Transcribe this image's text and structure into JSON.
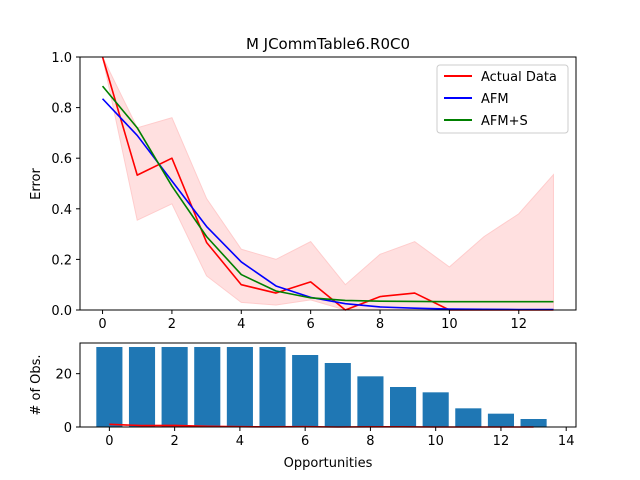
{
  "chart_data": [
    {
      "type": "line",
      "title": "M  JCommTable6.R0C0",
      "xlabel": "",
      "ylabel": "Error",
      "xlim": [
        -0.65,
        13.65
      ],
      "ylim": [
        0,
        1.0
      ],
      "x_ticks": [
        0,
        2,
        4,
        6,
        8,
        10,
        12
      ],
      "y_ticks": [
        0.0,
        0.2,
        0.4,
        0.6,
        0.8,
        1.0
      ],
      "y_tick_labels": [
        "0.0",
        "0.2",
        "0.4",
        "0.6",
        "0.8",
        "1.0"
      ],
      "grid": false,
      "legend_position": "top-right",
      "x": [
        0,
        1,
        2,
        3,
        4,
        5,
        6,
        7,
        8,
        9,
        10,
        11,
        12,
        13
      ],
      "series": [
        {
          "name": "Actual Data",
          "color": "#ff0000",
          "values": [
            1.0,
            0.533,
            0.6,
            0.267,
            0.1,
            0.067,
            0.111,
            0.0,
            0.053,
            0.067,
            0.0,
            0.0,
            0.0,
            0.0
          ]
        },
        {
          "name": "AFM",
          "color": "#0000ff",
          "values": [
            0.835,
            0.69,
            0.51,
            0.33,
            0.19,
            0.095,
            0.05,
            0.025,
            0.012,
            0.007,
            0.004,
            0.003,
            0.002,
            0.002
          ]
        },
        {
          "name": "AFM+S",
          "color": "#008000",
          "values": [
            0.885,
            0.72,
            0.49,
            0.29,
            0.14,
            0.075,
            0.048,
            0.038,
            0.035,
            0.034,
            0.033,
            0.033,
            0.033,
            0.033
          ]
        }
      ],
      "band": {
        "color": "#ffcccc",
        "upper": [
          1.0,
          0.72,
          0.76,
          0.44,
          0.24,
          0.2,
          0.27,
          0.1,
          0.22,
          0.27,
          0.17,
          0.29,
          0.38,
          0.535
        ],
        "lower": [
          1.0,
          0.355,
          0.42,
          0.135,
          0.03,
          0.02,
          0.04,
          0.0,
          0.0,
          0.0,
          0.0,
          0.0,
          0.0,
          0.0
        ]
      }
    },
    {
      "type": "bar",
      "title": "",
      "xlabel": "Opportunities",
      "ylabel": "# of Obs.",
      "xlim": [
        -0.9,
        14.3
      ],
      "ylim": [
        0,
        31.5
      ],
      "x_ticks": [
        0,
        2,
        4,
        6,
        8,
        10,
        12,
        14
      ],
      "y_ticks": [
        0,
        20
      ],
      "grid": false,
      "bar_color": "#1f77b4",
      "categories": [
        0,
        1,
        2,
        3,
        4,
        5,
        6,
        7,
        8,
        9,
        10,
        11,
        12,
        13
      ],
      "values": [
        30,
        30,
        30,
        30,
        30,
        30,
        27,
        24,
        19,
        15,
        13,
        7,
        5,
        3
      ],
      "overlay_line": {
        "color": "#ff0000",
        "values": [
          1.0,
          0.533,
          0.6,
          0.267,
          0.1,
          0.067,
          0.111,
          0.0,
          0.053,
          0.067,
          0.0,
          0.0,
          0.0,
          0.0
        ]
      }
    }
  ]
}
